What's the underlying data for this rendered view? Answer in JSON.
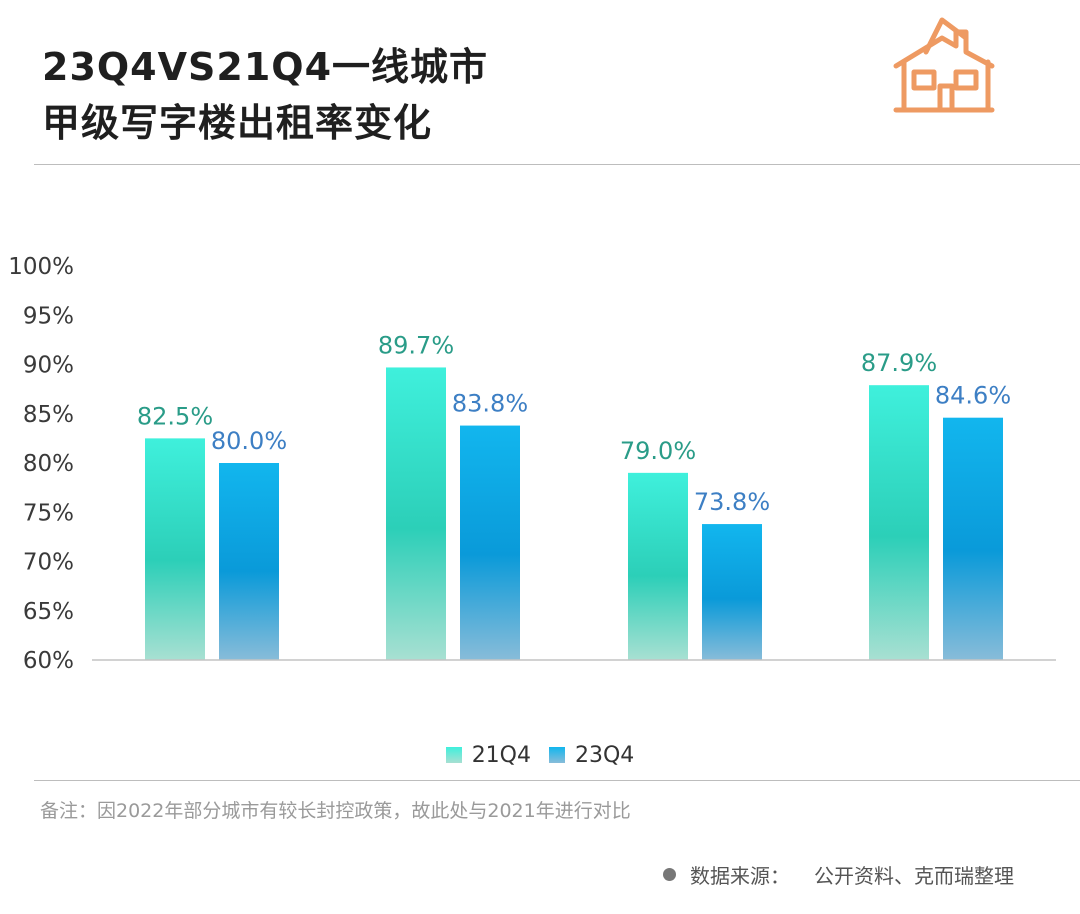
{
  "title": {
    "line1": "23Q4VS21Q4一线城市",
    "line2": "甲级写字楼出租率变化"
  },
  "colors": {
    "series_21q4_top": "#3ff0dc",
    "series_21q4_mid": "#2ccfb8",
    "series_21q4_bottom": "#a8e0d2",
    "series_23q4_top": "#12b6ee",
    "series_23q4_mid": "#0a9ad9",
    "series_23q4_bottom": "#88bcd9",
    "label_21q4": "#2a9c88",
    "label_23q4": "#3d7fc4",
    "icon": "#ee9a62",
    "divider": "#bdbdbd"
  },
  "icon": "house-icon",
  "chart_data": {
    "type": "bar",
    "categories": [
      "",
      "",
      "",
      ""
    ],
    "series": [
      {
        "name": "21Q4",
        "values": [
          82.5,
          89.7,
          79.0,
          87.9
        ],
        "labels": [
          "82.5%",
          "89.7%",
          "79.0%",
          "87.9%"
        ]
      },
      {
        "name": "23Q4",
        "values": [
          80.0,
          83.8,
          73.8,
          84.6
        ],
        "labels": [
          "80.0%",
          "83.8%",
          "73.8%",
          "84.6%"
        ]
      }
    ],
    "ylim": [
      60,
      100
    ],
    "yticks": [
      60,
      65,
      70,
      75,
      80,
      85,
      90,
      95,
      100
    ],
    "ytick_labels": [
      "60%",
      "65%",
      "70%",
      "75%",
      "80%",
      "85%",
      "90%",
      "95%",
      "100%"
    ],
    "xlabel": "",
    "ylabel": "",
    "grid": false,
    "legend": "bottom"
  },
  "note": "备注：因2022年部分城市有较长封控政策，故此处与2021年进行对比",
  "source": {
    "label": "数据来源：",
    "value": "公开资料、克而瑞整理"
  }
}
